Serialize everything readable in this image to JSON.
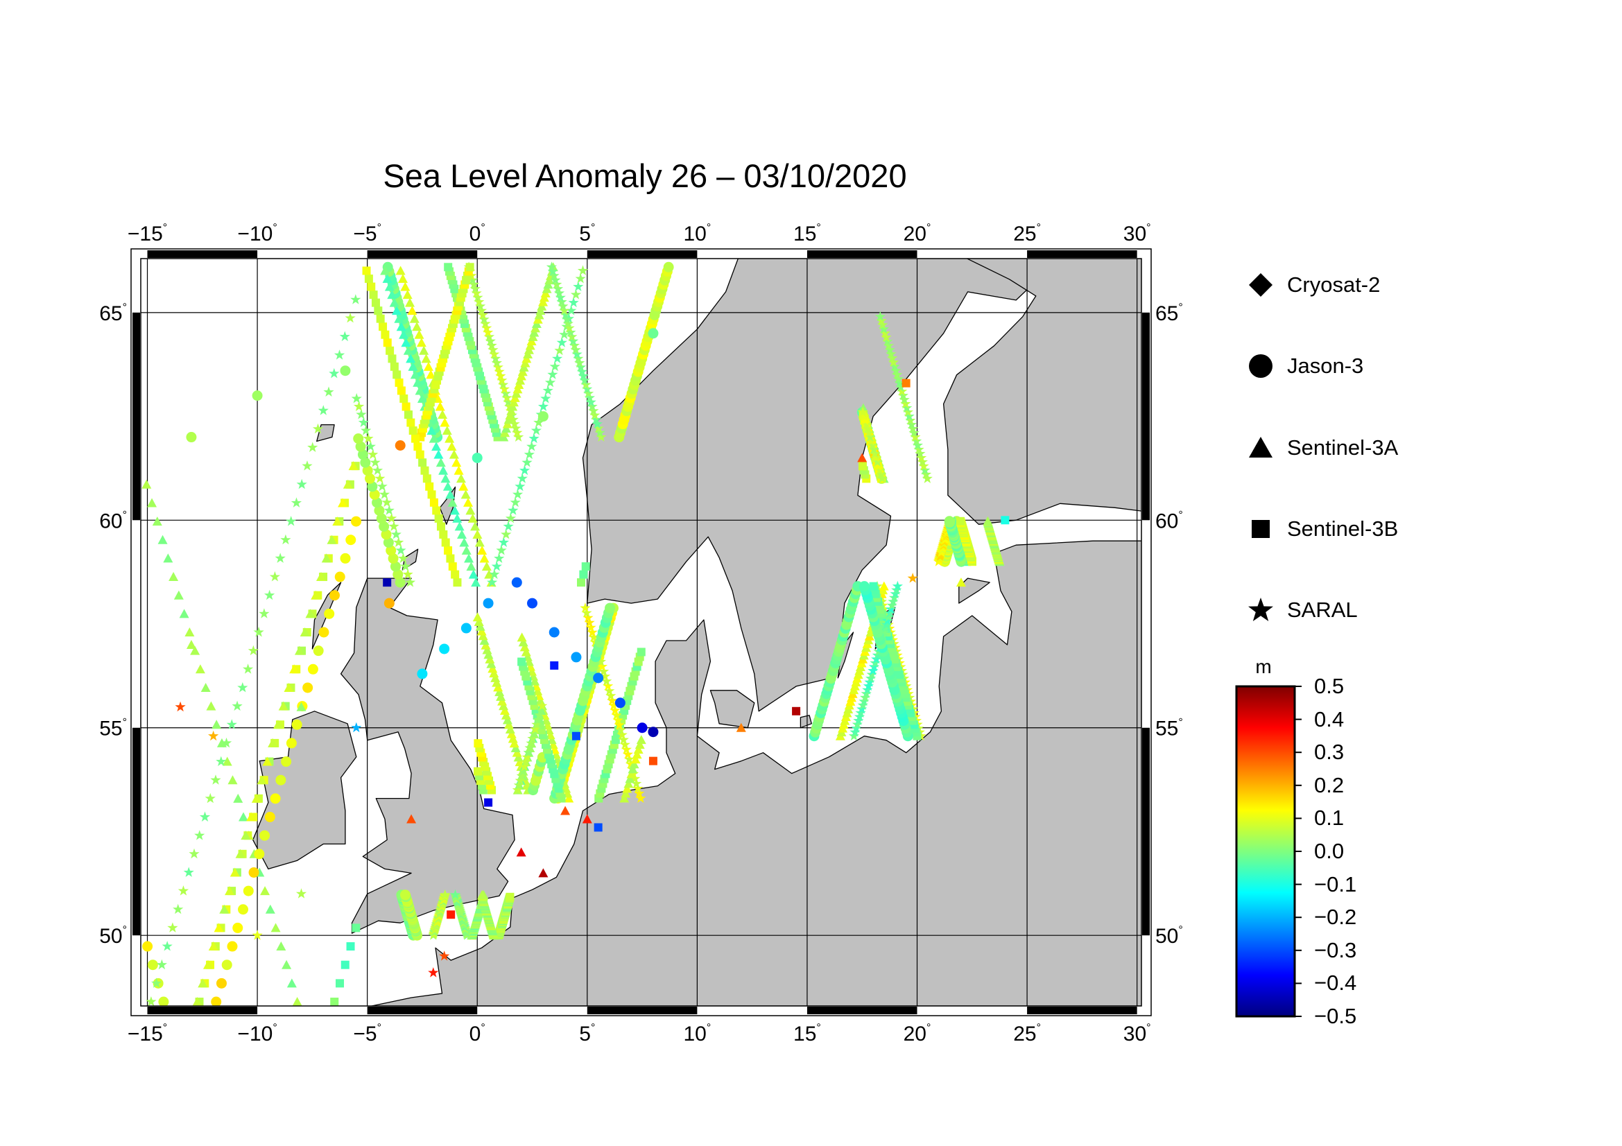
{
  "title": "Sea Level Anomaly 26 – 03/10/2020",
  "map": {
    "lon_min": -15.3,
    "lon_max": 30.2,
    "lat_min": 48.3,
    "lat_max": 66.3,
    "lon_ticks": [
      -15,
      -10,
      -5,
      0,
      5,
      10,
      15,
      20,
      25,
      30
    ],
    "lon_tick_labels": [
      "−15",
      "−10",
      "−5",
      "0",
      "5",
      "10",
      "15",
      "20",
      "25",
      "30"
    ],
    "lat_ticks": [
      50,
      55,
      60,
      65
    ],
    "lat_tick_labels": [
      "50",
      "55",
      "60",
      "65"
    ],
    "degree_symbol": "°",
    "land_color": "#c0c0c0",
    "sea_color": "#ffffff"
  },
  "legend": {
    "items": [
      {
        "label": "Cryosat-2",
        "icon": "diamond-icon"
      },
      {
        "label": "Jason-3",
        "icon": "circle-icon"
      },
      {
        "label": "Sentinel-3A",
        "icon": "triangle-icon"
      },
      {
        "label": "Sentinel-3B",
        "icon": "square-icon"
      },
      {
        "label": "SARAL",
        "icon": "star-icon"
      }
    ]
  },
  "colorbar": {
    "unit": "m",
    "min": -0.5,
    "max": 0.5,
    "ticks": [
      "0.5",
      "0.4",
      "0.3",
      "0.2",
      "0.1",
      "0.0",
      "−0.1",
      "−0.2",
      "−0.3",
      "−0.4",
      "−0.5"
    ],
    "colors": [
      "#00007f",
      "#0000ff",
      "#007fff",
      "#00ffff",
      "#7fff7f",
      "#ffff00",
      "#ff7f00",
      "#ff0000",
      "#7f0000"
    ]
  },
  "chart_data": {
    "type": "scatter",
    "title": "Sea Level Anomaly 26 – 03/10/2020",
    "xlabel": "",
    "ylabel": "",
    "xlim": [
      -15.3,
      30.2
    ],
    "ylim": [
      48.3,
      66.3
    ],
    "value_unit": "m",
    "value_range": [
      -0.5,
      0.5
    ],
    "series": [
      {
        "name": "Jason-3",
        "marker": "circle",
        "points": [
          [
            -2.5,
            56.3,
            -0.15
          ],
          [
            -1.5,
            56.9,
            -0.15
          ],
          [
            -0.5,
            57.4,
            -0.18
          ],
          [
            0.5,
            58.0,
            -0.22
          ],
          [
            1.8,
            58.5,
            -0.28
          ],
          [
            2.5,
            58.0,
            -0.3
          ],
          [
            3.5,
            57.3,
            -0.25
          ],
          [
            4.5,
            56.7,
            -0.22
          ],
          [
            5.5,
            56.2,
            -0.25
          ],
          [
            6.5,
            55.6,
            -0.3
          ],
          [
            7.5,
            55.0,
            -0.4
          ],
          [
            8.0,
            54.9,
            -0.45
          ],
          [
            -13,
            62.0,
            0.05
          ],
          [
            -10,
            63.0,
            0.03
          ],
          [
            -6,
            63.6,
            0.02
          ],
          [
            0,
            61.5,
            -0.05
          ],
          [
            3,
            62.5,
            0.02
          ],
          [
            8,
            64.5,
            -0.02
          ],
          [
            -4,
            58.0,
            0.2
          ],
          [
            -3.5,
            61.8,
            0.25
          ]
        ]
      },
      {
        "name": "Sentinel-3A",
        "marker": "triangle",
        "points": [
          [
            2,
            52.0,
            0.4
          ],
          [
            3,
            51.5,
            0.45
          ],
          [
            4,
            53.0,
            0.3
          ],
          [
            5,
            52.8,
            0.35
          ],
          [
            -3,
            52.8,
            0.3
          ],
          [
            12,
            55.0,
            0.25
          ],
          [
            17.5,
            61.5,
            0.3
          ],
          [
            -13,
            57.0,
            0.05
          ],
          [
            -8,
            55.5,
            0.02
          ],
          [
            22,
            58.5,
            0.1
          ]
        ]
      },
      {
        "name": "Sentinel-3B",
        "marker": "square",
        "points": [
          [
            -4.1,
            58.5,
            -0.45
          ],
          [
            0.5,
            53.2,
            -0.4
          ],
          [
            5.5,
            52.6,
            -0.3
          ],
          [
            3.5,
            56.5,
            -0.35
          ],
          [
            4.5,
            54.8,
            -0.3
          ],
          [
            14.5,
            55.4,
            0.45
          ],
          [
            -1.2,
            50.5,
            0.35
          ],
          [
            8,
            54.2,
            0.3
          ],
          [
            19.5,
            63.3,
            0.25
          ],
          [
            24,
            60.0,
            -0.1
          ]
        ]
      },
      {
        "name": "SARAL",
        "marker": "star",
        "points": [
          [
            -2,
            49.1,
            0.35
          ],
          [
            -1.5,
            49.5,
            0.3
          ],
          [
            -13.5,
            55.5,
            0.3
          ],
          [
            -12,
            54.8,
            0.2
          ],
          [
            19.8,
            58.6,
            0.2
          ],
          [
            -5.5,
            55.0,
            -0.2
          ],
          [
            -8,
            51.0,
            0.05
          ],
          [
            -10,
            50.0,
            0.1
          ]
        ]
      }
    ]
  }
}
